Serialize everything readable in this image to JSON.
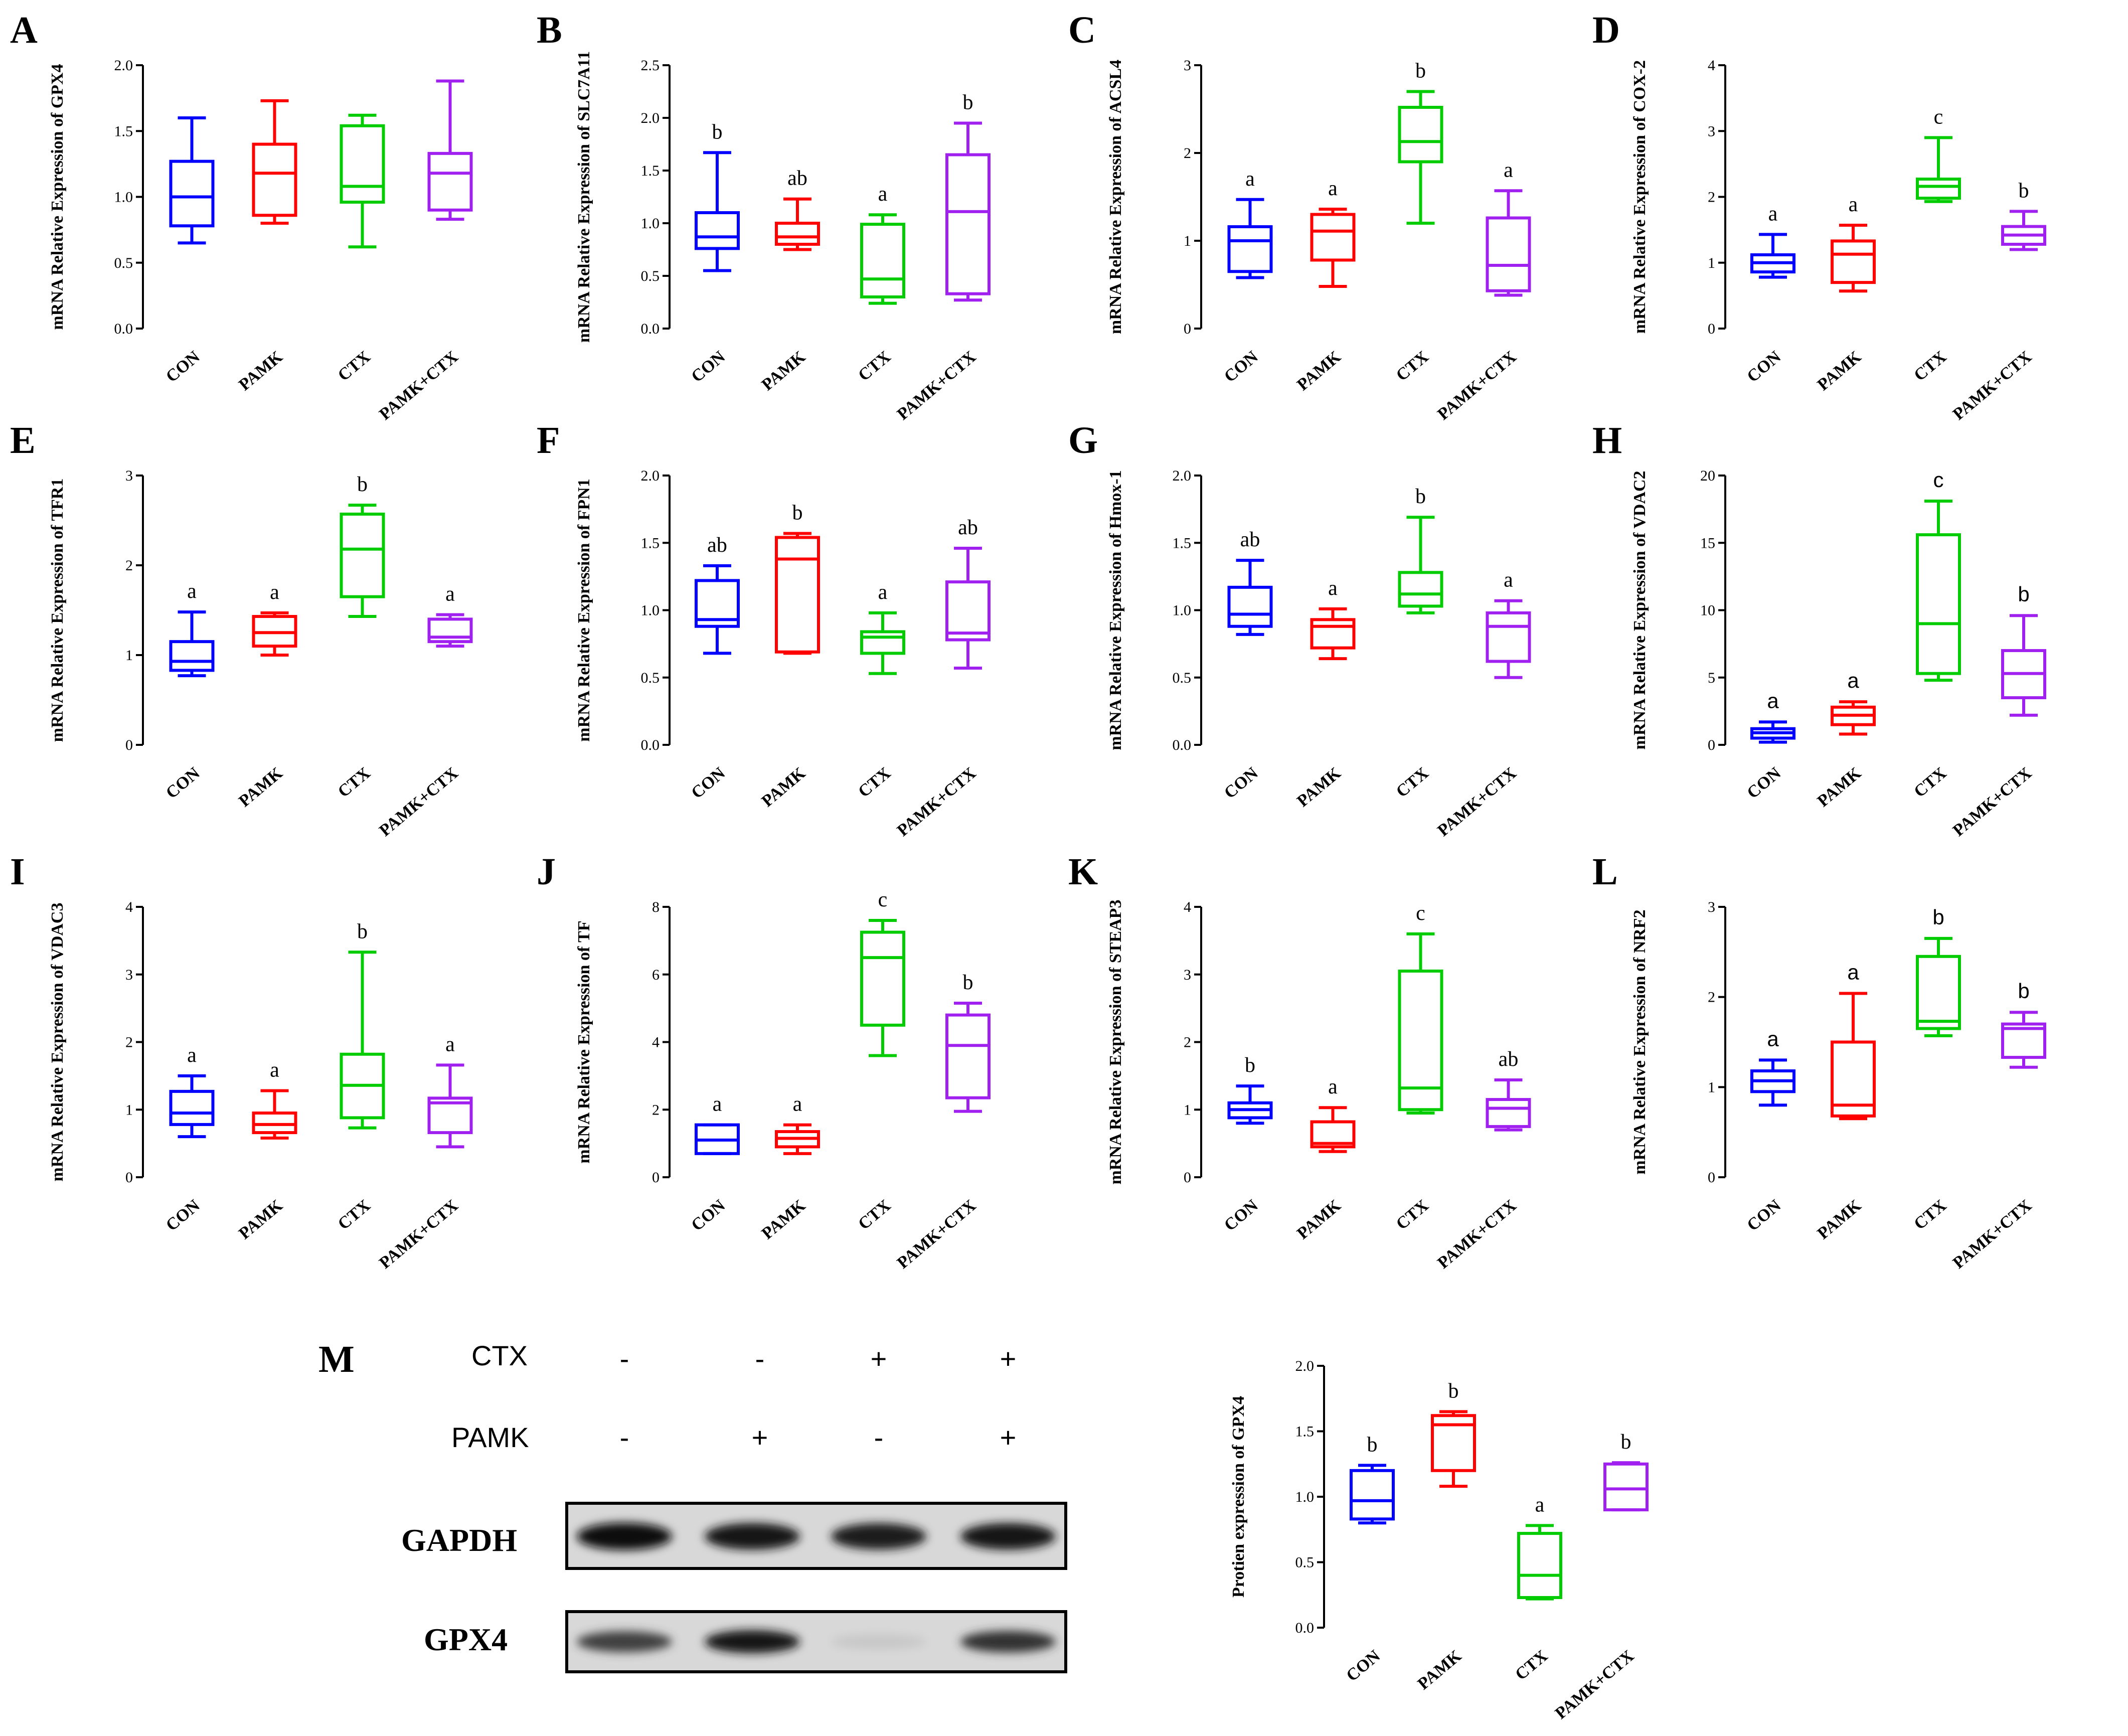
{
  "colors": {
    "CON": "#0000ff",
    "PAMK": "#ff0000",
    "CTX": "#00cc00",
    "PAMK+CTX": "#a020f0"
  },
  "chart_data": [
    {
      "panel": "A",
      "type": "boxplot",
      "ylabel": "mRNA Relative Expression of GPX4",
      "ylim": [
        0,
        2.0
      ],
      "yticks": [
        "0.0",
        "0.5",
        "1.0",
        "1.5",
        "2.0"
      ],
      "categories": [
        "CON",
        "PAMK",
        "CTX",
        "PAMK+CTX"
      ],
      "boxes": [
        {
          "min": 0.65,
          "q1": 0.78,
          "median": 1.0,
          "q3": 1.27,
          "max": 1.6
        },
        {
          "min": 0.8,
          "q1": 0.86,
          "median": 1.18,
          "q3": 1.4,
          "max": 1.73
        },
        {
          "min": 0.62,
          "q1": 0.96,
          "median": 1.08,
          "q3": 1.54,
          "max": 1.62
        },
        {
          "min": 0.83,
          "q1": 0.9,
          "median": 1.18,
          "q3": 1.33,
          "max": 1.88
        }
      ],
      "sig": [
        "",
        "",
        "",
        ""
      ]
    },
    {
      "panel": "B",
      "type": "boxplot",
      "ylabel": "mRNA Relative Expression of SLC7A11",
      "ylim": [
        0,
        2.5
      ],
      "yticks": [
        "0.0",
        "0.5",
        "1.0",
        "1.5",
        "2.0",
        "2.5"
      ],
      "categories": [
        "CON",
        "PAMK",
        "CTX",
        "PAMK+CTX"
      ],
      "boxes": [
        {
          "min": 0.55,
          "q1": 0.76,
          "median": 0.87,
          "q3": 1.1,
          "max": 1.67
        },
        {
          "min": 0.75,
          "q1": 0.8,
          "median": 0.87,
          "q3": 1.0,
          "max": 1.23
        },
        {
          "min": 0.24,
          "q1": 0.3,
          "median": 0.47,
          "q3": 0.99,
          "max": 1.08
        },
        {
          "min": 0.27,
          "q1": 0.33,
          "median": 1.11,
          "q3": 1.65,
          "max": 1.95
        }
      ],
      "sig": [
        "b",
        "ab",
        "a",
        "b"
      ]
    },
    {
      "panel": "C",
      "type": "boxplot",
      "ylabel": "mRNA Relative Expression of ACSL4",
      "ylim": [
        0,
        3
      ],
      "yticks": [
        "0",
        "1",
        "2",
        "3"
      ],
      "categories": [
        "CON",
        "PAMK",
        "CTX",
        "PAMK+CTX"
      ],
      "boxes": [
        {
          "min": 0.58,
          "q1": 0.65,
          "median": 1.0,
          "q3": 1.16,
          "max": 1.47
        },
        {
          "min": 0.48,
          "q1": 0.78,
          "median": 1.11,
          "q3": 1.3,
          "max": 1.36
        },
        {
          "min": 1.2,
          "q1": 1.9,
          "median": 2.13,
          "q3": 2.52,
          "max": 2.7
        },
        {
          "min": 0.38,
          "q1": 0.43,
          "median": 0.72,
          "q3": 1.26,
          "max": 1.57
        }
      ],
      "sig": [
        "a",
        "a",
        "b",
        "a"
      ]
    },
    {
      "panel": "D",
      "type": "boxplot",
      "ylabel": "mRNA Relative Expression of COX-2",
      "ylim": [
        0,
        4
      ],
      "yticks": [
        "0",
        "1",
        "2",
        "3",
        "4"
      ],
      "categories": [
        "CON",
        "PAMK",
        "CTX",
        "PAMK+CTX"
      ],
      "boxes": [
        {
          "min": 0.78,
          "q1": 0.86,
          "median": 1.0,
          "q3": 1.12,
          "max": 1.43
        },
        {
          "min": 0.57,
          "q1": 0.7,
          "median": 1.13,
          "q3": 1.33,
          "max": 1.57
        },
        {
          "min": 1.93,
          "q1": 1.98,
          "median": 2.16,
          "q3": 2.27,
          "max": 2.9
        },
        {
          "min": 1.2,
          "q1": 1.28,
          "median": 1.42,
          "q3": 1.55,
          "max": 1.78
        }
      ],
      "sig": [
        "a",
        "a",
        "c",
        "b"
      ]
    },
    {
      "panel": "E",
      "type": "boxplot",
      "ylabel": "mRNA Relative Expression of TFR1",
      "ylim": [
        0,
        3
      ],
      "yticks": [
        "0",
        "1",
        "2",
        "3"
      ],
      "categories": [
        "CON",
        "PAMK",
        "CTX",
        "PAMK+CTX"
      ],
      "boxes": [
        {
          "min": 0.77,
          "q1": 0.83,
          "median": 0.93,
          "q3": 1.15,
          "max": 1.48
        },
        {
          "min": 1.0,
          "q1": 1.1,
          "median": 1.25,
          "q3": 1.43,
          "max": 1.47
        },
        {
          "min": 1.43,
          "q1": 1.65,
          "median": 2.18,
          "q3": 2.57,
          "max": 2.67
        },
        {
          "min": 1.1,
          "q1": 1.15,
          "median": 1.2,
          "q3": 1.4,
          "max": 1.45
        }
      ],
      "sig": [
        "a",
        "a",
        "b",
        "a"
      ]
    },
    {
      "panel": "F",
      "type": "boxplot",
      "ylabel": "mRNA Relative Expression of FPN1",
      "ylim": [
        0,
        2.0
      ],
      "yticks": [
        "0.0",
        "0.5",
        "1.0",
        "1.5",
        "2.0"
      ],
      "categories": [
        "CON",
        "PAMK",
        "CTX",
        "PAMK+CTX"
      ],
      "boxes": [
        {
          "min": 0.68,
          "q1": 0.88,
          "median": 0.93,
          "q3": 1.22,
          "max": 1.33
        },
        {
          "min": 0.68,
          "q1": 0.69,
          "median": 1.38,
          "q3": 1.54,
          "max": 1.57
        },
        {
          "min": 0.53,
          "q1": 0.68,
          "median": 0.8,
          "q3": 0.84,
          "max": 0.98
        },
        {
          "min": 0.57,
          "q1": 0.78,
          "median": 0.83,
          "q3": 1.21,
          "max": 1.46
        }
      ],
      "sig": [
        "ab",
        "b",
        "a",
        "ab"
      ]
    },
    {
      "panel": "G",
      "type": "boxplot",
      "ylabel": "mRNA Relative Expression of Hmox-1",
      "ylim": [
        0,
        2.0
      ],
      "yticks": [
        "0.0",
        "0.5",
        "1.0",
        "1.5",
        "2.0"
      ],
      "categories": [
        "CON",
        "PAMK",
        "CTX",
        "PAMK+CTX"
      ],
      "boxes": [
        {
          "min": 0.82,
          "q1": 0.88,
          "median": 0.97,
          "q3": 1.17,
          "max": 1.37
        },
        {
          "min": 0.64,
          "q1": 0.72,
          "median": 0.88,
          "q3": 0.93,
          "max": 1.01
        },
        {
          "min": 0.98,
          "q1": 1.03,
          "median": 1.12,
          "q3": 1.28,
          "max": 1.69
        },
        {
          "min": 0.5,
          "q1": 0.62,
          "median": 0.88,
          "q3": 0.98,
          "max": 1.07
        }
      ],
      "sig": [
        "ab",
        "a",
        "b",
        "a"
      ]
    },
    {
      "panel": "H",
      "type": "boxplot",
      "ylabel": "mRNA Relative Expression of VDAC2",
      "ylim": [
        0,
        20
      ],
      "yticks": [
        "0",
        "5",
        "10",
        "15",
        "20"
      ],
      "categories": [
        "CON",
        "PAMK",
        "CTX",
        "PAMK+CTX"
      ],
      "boxes": [
        {
          "min": 0.2,
          "q1": 0.5,
          "median": 0.9,
          "q3": 1.2,
          "max": 1.7
        },
        {
          "min": 0.8,
          "q1": 1.5,
          "median": 2.2,
          "q3": 2.8,
          "max": 3.2
        },
        {
          "min": 4.8,
          "q1": 5.3,
          "median": 9.0,
          "q3": 15.6,
          "max": 18.1
        },
        {
          "min": 2.2,
          "q1": 3.5,
          "median": 5.3,
          "q3": 7.0,
          "max": 9.6
        }
      ],
      "sig": [
        "a",
        "a",
        "c",
        "b"
      ]
    },
    {
      "panel": "I",
      "type": "boxplot",
      "ylabel": "mRNA Relative Expression of VDAC3",
      "ylim": [
        0,
        4
      ],
      "yticks": [
        "0",
        "1",
        "2",
        "3",
        "4"
      ],
      "categories": [
        "CON",
        "PAMK",
        "CTX",
        "PAMK+CTX"
      ],
      "boxes": [
        {
          "min": 0.6,
          "q1": 0.78,
          "median": 0.95,
          "q3": 1.27,
          "max": 1.5
        },
        {
          "min": 0.58,
          "q1": 0.66,
          "median": 0.78,
          "q3": 0.95,
          "max": 1.28
        },
        {
          "min": 0.73,
          "q1": 0.88,
          "median": 1.36,
          "q3": 1.82,
          "max": 3.33
        },
        {
          "min": 0.45,
          "q1": 0.66,
          "median": 1.1,
          "q3": 1.17,
          "max": 1.66
        }
      ],
      "sig": [
        "a",
        "a",
        "b",
        "a"
      ]
    },
    {
      "panel": "J",
      "type": "boxplot",
      "ylabel": "mRNA Relative Expression of TF",
      "ylim": [
        0,
        8
      ],
      "yticks": [
        "0",
        "2",
        "4",
        "6",
        "8"
      ],
      "categories": [
        "CON",
        "PAMK",
        "CTX",
        "PAMK+CTX"
      ],
      "boxes": [
        {
          "min": 0.7,
          "q1": 0.7,
          "median": 1.1,
          "q3": 1.55,
          "max": 1.55
        },
        {
          "min": 0.7,
          "q1": 0.9,
          "median": 1.15,
          "q3": 1.35,
          "max": 1.55
        },
        {
          "min": 3.6,
          "q1": 4.5,
          "median": 6.5,
          "q3": 7.25,
          "max": 7.6
        },
        {
          "min": 1.95,
          "q1": 2.35,
          "median": 3.9,
          "q3": 4.8,
          "max": 5.15
        }
      ],
      "sig": [
        "a",
        "a",
        "c",
        "b"
      ]
    },
    {
      "panel": "K",
      "type": "boxplot",
      "ylabel": "mRNA Relative Expression of STEAP3",
      "ylim": [
        0,
        4
      ],
      "yticks": [
        "0",
        "1",
        "2",
        "3",
        "4"
      ],
      "categories": [
        "CON",
        "PAMK",
        "CTX",
        "PAMK+CTX"
      ],
      "boxes": [
        {
          "min": 0.8,
          "q1": 0.88,
          "median": 1.0,
          "q3": 1.1,
          "max": 1.35
        },
        {
          "min": 0.38,
          "q1": 0.45,
          "median": 0.5,
          "q3": 0.82,
          "max": 1.03
        },
        {
          "min": 0.95,
          "q1": 1.0,
          "median": 1.32,
          "q3": 3.05,
          "max": 3.6
        },
        {
          "min": 0.7,
          "q1": 0.75,
          "median": 1.02,
          "q3": 1.15,
          "max": 1.44
        }
      ],
      "sig": [
        "b",
        "a",
        "c",
        "ab"
      ]
    },
    {
      "panel": "L",
      "type": "boxplot",
      "ylabel": "mRNA Relative Expression of NRF2",
      "ylim": [
        0,
        3
      ],
      "yticks": [
        "0",
        "1",
        "2",
        "3"
      ],
      "categories": [
        "CON",
        "PAMK",
        "CTX",
        "PAMK+CTX"
      ],
      "boxes": [
        {
          "min": 0.8,
          "q1": 0.95,
          "median": 1.07,
          "q3": 1.18,
          "max": 1.3
        },
        {
          "min": 0.65,
          "q1": 0.68,
          "median": 0.8,
          "q3": 1.5,
          "max": 2.04
        },
        {
          "min": 1.57,
          "q1": 1.65,
          "median": 1.73,
          "q3": 2.45,
          "max": 2.65
        },
        {
          "min": 1.22,
          "q1": 1.33,
          "median": 1.65,
          "q3": 1.7,
          "max": 1.83
        }
      ],
      "sig": [
        "a",
        "a",
        "b",
        "b"
      ]
    },
    {
      "panel": "M",
      "type": "boxplot",
      "ylabel": "Protien expression of GPX4",
      "ylim": [
        0,
        2.0
      ],
      "yticks": [
        "0.0",
        "0.5",
        "1.0",
        "1.5",
        "2.0"
      ],
      "categories": [
        "CON",
        "PAMK",
        "CTX",
        "PAMK+CTX"
      ],
      "boxes": [
        {
          "min": 0.8,
          "q1": 0.83,
          "median": 0.97,
          "q3": 1.2,
          "max": 1.24
        },
        {
          "min": 1.08,
          "q1": 1.2,
          "median": 1.55,
          "q3": 1.62,
          "max": 1.65
        },
        {
          "min": 0.22,
          "q1": 0.23,
          "median": 0.4,
          "q3": 0.72,
          "max": 0.78
        },
        {
          "min": 0.9,
          "q1": 0.9,
          "median": 1.06,
          "q3": 1.25,
          "max": 1.26
        }
      ],
      "sig": [
        "b",
        "b",
        "a",
        "b"
      ]
    }
  ],
  "western_blot": {
    "panel": "M",
    "rows": [
      {
        "label": "CTX",
        "signs": [
          "-",
          "-",
          "+",
          "+"
        ]
      },
      {
        "label": "PAMK",
        "signs": [
          "-",
          "+",
          "-",
          "+"
        ]
      }
    ],
    "bands": [
      {
        "label": "GAPDH",
        "intensity": [
          0.95,
          0.9,
          0.88,
          0.9
        ]
      },
      {
        "label": "GPX4",
        "intensity": [
          0.75,
          0.92,
          0.22,
          0.8
        ]
      }
    ]
  }
}
